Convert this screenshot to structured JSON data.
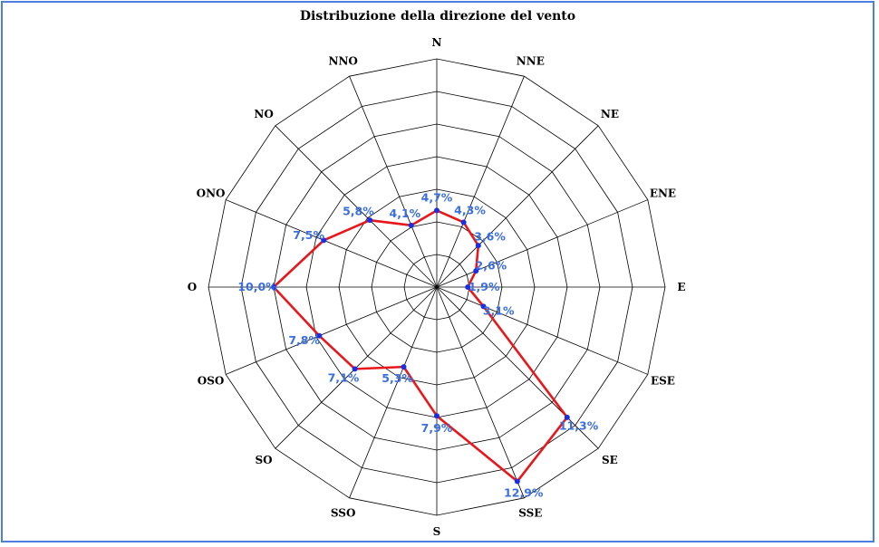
{
  "chart_data": {
    "type": "radar",
    "title": "Distribuzione della direzione del vento",
    "directions": [
      "N",
      "NNE",
      "NE",
      "ENE",
      "E",
      "ESE",
      "SE",
      "SSE",
      "S",
      "SSO",
      "SO",
      "OSO",
      "O",
      "ONO",
      "NO",
      "NNO"
    ],
    "values": [
      4.7,
      4.3,
      3.6,
      2.6,
      1.9,
      3.1,
      11.3,
      12.9,
      7.9,
      5.3,
      7.1,
      7.8,
      10.0,
      7.5,
      5.8,
      4.1
    ],
    "value_labels": [
      "4,7%",
      "4,3%",
      "3,6%",
      "2,6%",
      "1,9%",
      "3,1%",
      "11,3%",
      "12,9%",
      "7,9%",
      "5,3%",
      "7,1%",
      "7,8%",
      "10,0%",
      "7,5%",
      "5,8%",
      "4,1%"
    ],
    "r_max": 14,
    "rings": 7,
    "grid": true,
    "colors": {
      "series_line": "#e8171b",
      "points": "#1a2ee6",
      "value_text": "#3b6fe0",
      "grid": "#000000",
      "frame": "#4f7fdc"
    }
  }
}
